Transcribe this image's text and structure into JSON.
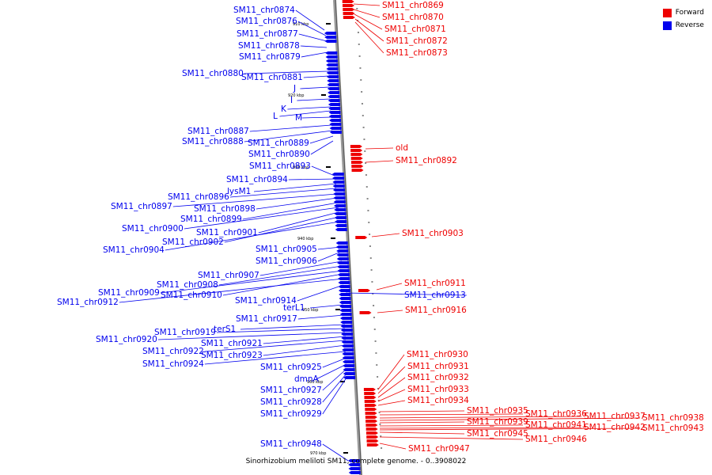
{
  "caption": "Sinorhizobium meliloti SM11, complete genome. - 0..3908022",
  "legend": [
    {
      "label": "Forward",
      "color": "#ee0000"
    },
    {
      "label": "Reverse",
      "color": "#0000ee"
    }
  ],
  "ticks": [
    "910 kbp",
    "920 kbp",
    "930 kbp",
    "940 kbp",
    "950 kbp",
    "960 kbp",
    "970 kbp"
  ],
  "forward_labels": [
    "SM11_chr0869",
    "SM11_chr0870",
    "SM11_chr0871",
    "SM11_chr0872",
    "SM11_chr0873",
    "old",
    "SM11_chr0892",
    "SM11_chr0903",
    "SM11_chr0911",
    "SM11_chr0916",
    "SM11_chr0930",
    "SM11_chr0931",
    "SM11_chr0932",
    "SM11_chr0933",
    "SM11_chr0934",
    "SM11_chr0935",
    "SM11_chr0936",
    "SM11_chr0937",
    "SM11_chr0938",
    "SM11_chr0939",
    "SM11_chr0941",
    "SM11_chr0942",
    "SM11_chr0943",
    "SM11_chr0945",
    "SM11_chr0946",
    "SM11_chr0947"
  ],
  "reverse_labels": [
    "SM11_chr0874",
    "SM11_chr0876",
    "SM11_chr0877",
    "SM11_chr0878",
    "SM11_chr0879",
    "SM11_chr0880",
    "SM11_chr0881",
    "J",
    "I",
    "K",
    "L",
    "M",
    "SM11_chr0887",
    "SM11_chr0888",
    "SM11_chr0889",
    "SM11_chr0890",
    "SM11_chr0893",
    "SM11_chr0894",
    "lysM1",
    "SM11_chr0896",
    "SM11_chr0897",
    "SM11_chr0898",
    "SM11_chr0899",
    "SM11_chr0900",
    "SM11_chr0901",
    "SM11_chr0902",
    "SM11_chr0904",
    "SM11_chr0905",
    "SM11_chr0906",
    "SM11_chr0907",
    "SM11_chr0908",
    "SM11_chr0909",
    "SM11_chr0910",
    "SM11_chr0912",
    "SM11_chr0914",
    "terL1",
    "SM11_chr0913",
    "SM11_chr0917",
    "terS1",
    "SM11_chr0919",
    "SM11_chr0920",
    "SM11_chr0921",
    "SM11_chr0922",
    "SM11_chr0923",
    "SM11_chr0924",
    "SM11_chr0925",
    "dmnA",
    "SM11_chr0927",
    "SM11_chr0928",
    "SM11_chr0929",
    "SM11_chr0948"
  ],
  "colors": {
    "forward": "#ee0000",
    "reverse": "#0000ee",
    "backbone": "#888888"
  }
}
